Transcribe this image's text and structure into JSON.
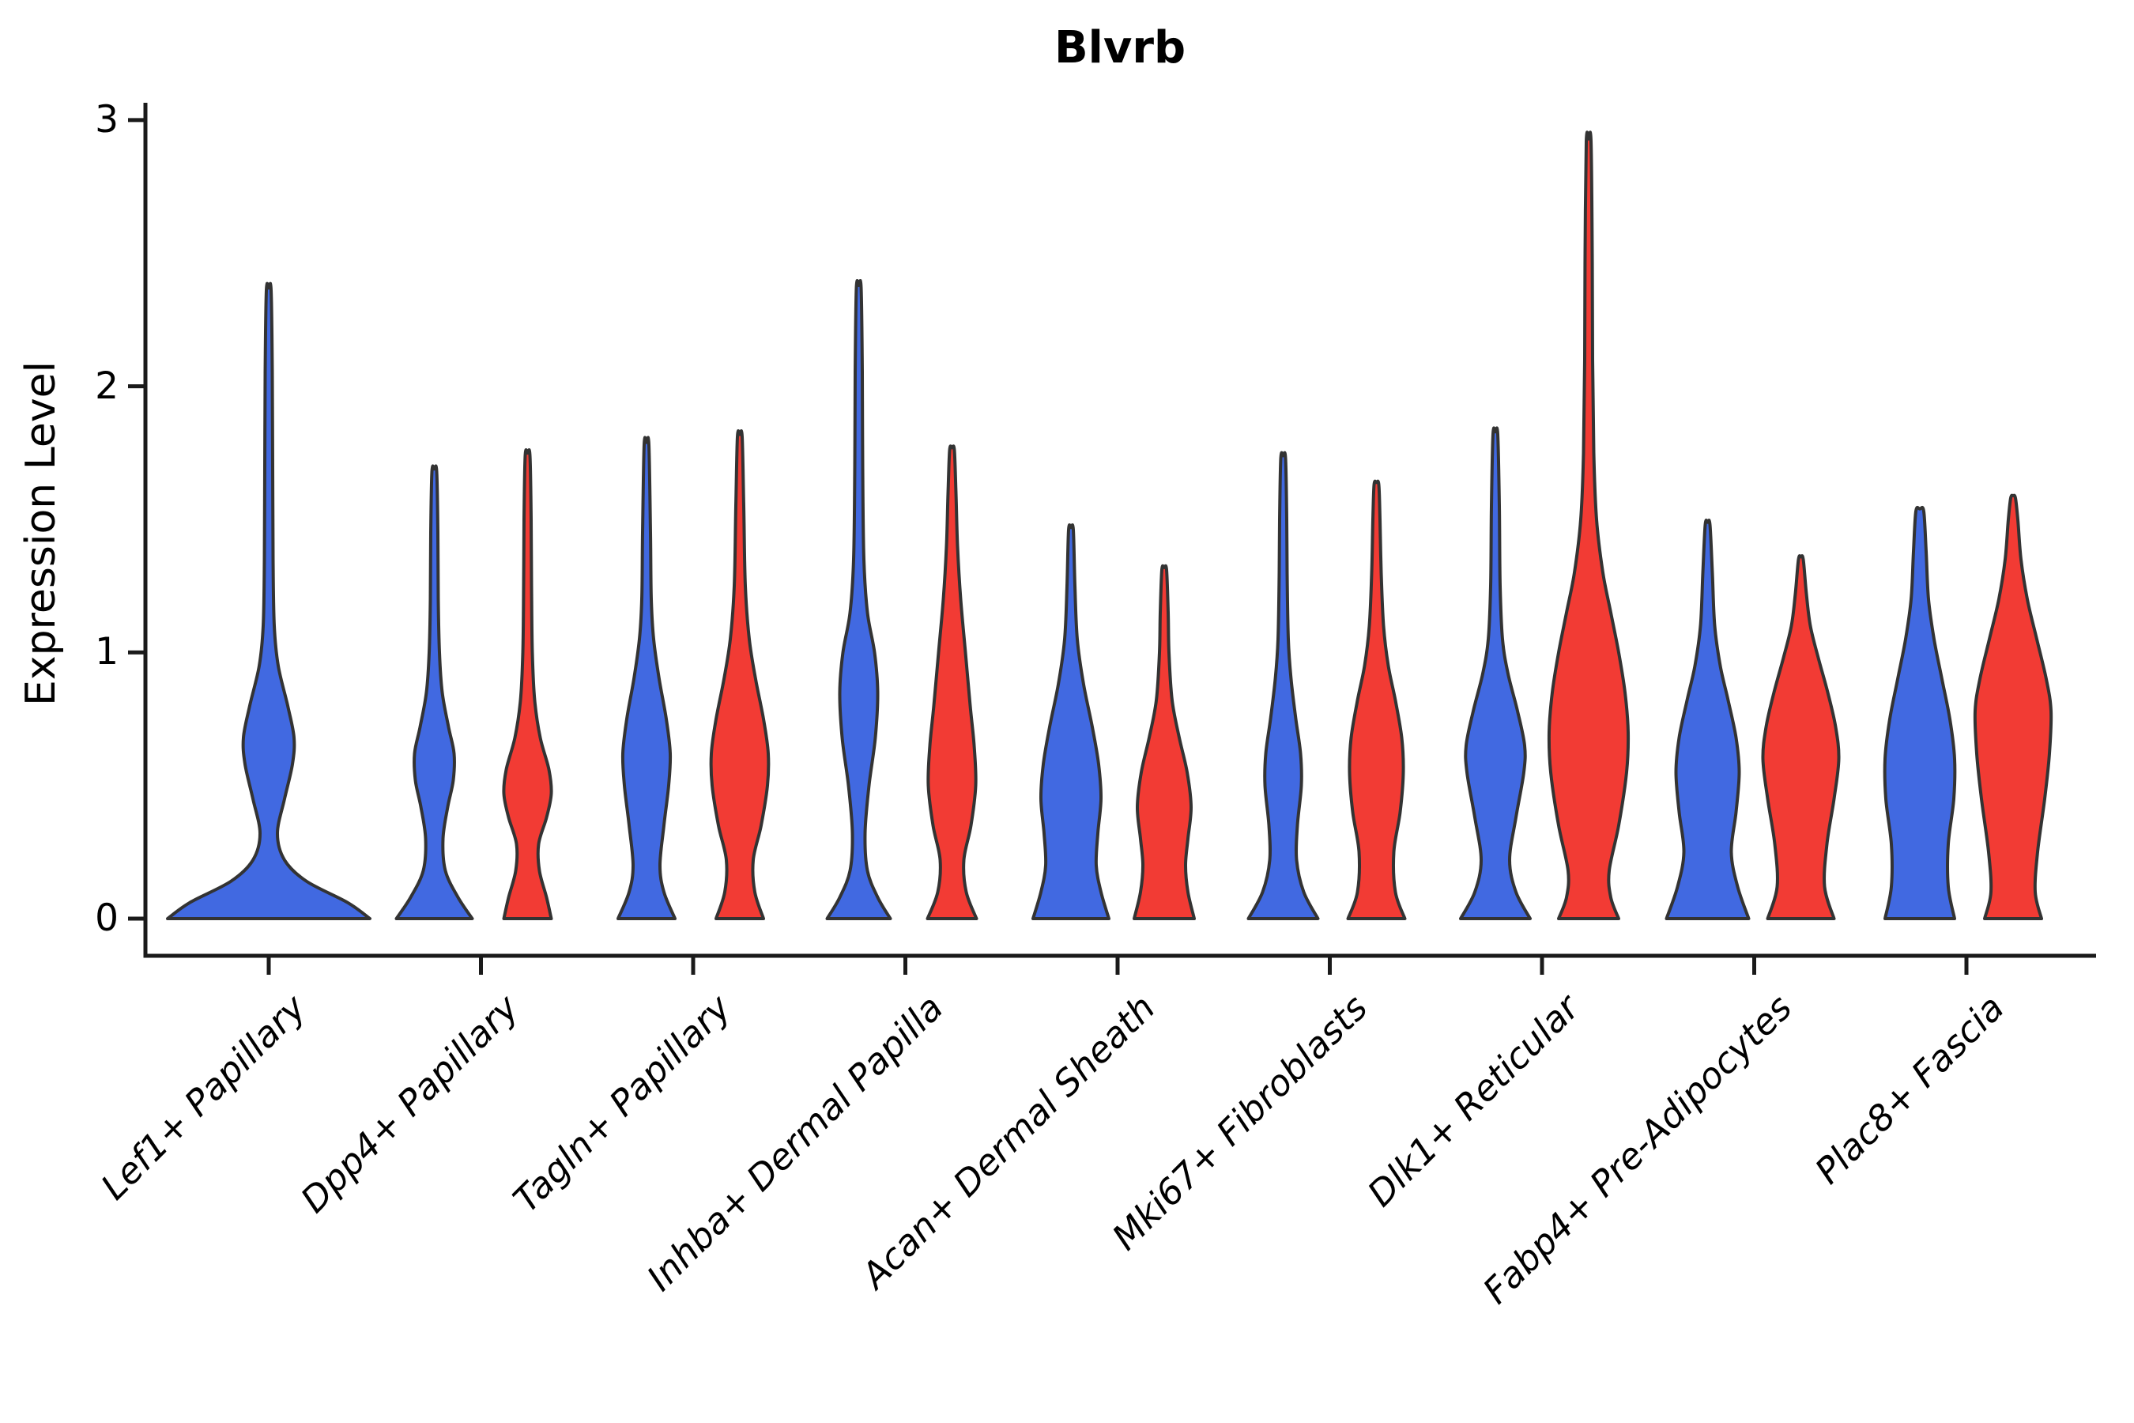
{
  "chart_data": {
    "type": "violin",
    "title": "Blvrb",
    "ylabel": "Expression Level",
    "xlabel": "",
    "yticks": [
      "0",
      "1",
      "2",
      "3"
    ],
    "ylim": [
      0,
      3.05
    ],
    "grid": false,
    "legend": "none",
    "categories": [
      "Lef1+ Papillary",
      "Dpp4+ Papillary",
      "Tagln+ Papillary",
      "Inhba+ Dermal Papilla",
      "Acan+ Dermal Sheath",
      "Mki67+ Fibroblasts",
      "Dlk1+ Reticular",
      "Fabp4+ Pre-Adipocytes",
      "Plac8+ Fascia"
    ],
    "colors": {
      "blue": "#4169E1",
      "red": "#F23B34",
      "edge": "#333333"
    },
    "note": "Split violin plot; expression density per cell type. profile = [expression_value, density_halfwidth_px] pairs from 0 up to the max observed value.",
    "violins": [
      {
        "category_index": 0,
        "color": "blue",
        "position": "single",
        "max": 2.36,
        "profile": [
          [
            0,
            128
          ],
          [
            0.06,
            100
          ],
          [
            0.14,
            48
          ],
          [
            0.22,
            20
          ],
          [
            0.32,
            11
          ],
          [
            0.45,
            20
          ],
          [
            0.58,
            30
          ],
          [
            0.68,
            32
          ],
          [
            0.8,
            24
          ],
          [
            0.95,
            12
          ],
          [
            1.1,
            7
          ],
          [
            1.35,
            5.5
          ],
          [
            1.7,
            5
          ],
          [
            2.05,
            4.5
          ],
          [
            2.36,
            3
          ]
        ]
      },
      {
        "category_index": 1,
        "color": "blue",
        "position": "left",
        "max": 1.68,
        "profile": [
          [
            0,
            48
          ],
          [
            0.08,
            30
          ],
          [
            0.18,
            14
          ],
          [
            0.3,
            11
          ],
          [
            0.42,
            17
          ],
          [
            0.52,
            24
          ],
          [
            0.62,
            25
          ],
          [
            0.72,
            18
          ],
          [
            0.85,
            10
          ],
          [
            1.0,
            6.5
          ],
          [
            1.2,
            5
          ],
          [
            1.45,
            4.5
          ],
          [
            1.68,
            3
          ]
        ]
      },
      {
        "category_index": 1,
        "color": "red",
        "position": "right",
        "max": 1.74,
        "profile": [
          [
            0,
            30
          ],
          [
            0.08,
            24
          ],
          [
            0.18,
            15
          ],
          [
            0.28,
            14
          ],
          [
            0.38,
            24
          ],
          [
            0.47,
            30
          ],
          [
            0.56,
            27
          ],
          [
            0.68,
            16
          ],
          [
            0.82,
            9
          ],
          [
            1.0,
            6
          ],
          [
            1.25,
            5
          ],
          [
            1.5,
            4.5
          ],
          [
            1.74,
            3
          ]
        ]
      },
      {
        "category_index": 2,
        "color": "blue",
        "position": "left",
        "max": 1.78,
        "profile": [
          [
            0,
            36
          ],
          [
            0.1,
            22
          ],
          [
            0.2,
            17
          ],
          [
            0.35,
            22
          ],
          [
            0.5,
            28
          ],
          [
            0.62,
            30
          ],
          [
            0.75,
            25
          ],
          [
            0.9,
            16
          ],
          [
            1.05,
            9
          ],
          [
            1.2,
            6
          ],
          [
            1.45,
            5
          ],
          [
            1.78,
            3
          ]
        ]
      },
      {
        "category_index": 2,
        "color": "red",
        "position": "right",
        "max": 1.81,
        "profile": [
          [
            0,
            30
          ],
          [
            0.1,
            19
          ],
          [
            0.22,
            17
          ],
          [
            0.35,
            27
          ],
          [
            0.5,
            35
          ],
          [
            0.62,
            36
          ],
          [
            0.75,
            30
          ],
          [
            0.9,
            20
          ],
          [
            1.05,
            12
          ],
          [
            1.25,
            7
          ],
          [
            1.55,
            5
          ],
          [
            1.81,
            3
          ]
        ]
      },
      {
        "category_index": 3,
        "color": "blue",
        "position": "left",
        "max": 2.37,
        "profile": [
          [
            0,
            40
          ],
          [
            0.08,
            24
          ],
          [
            0.18,
            11
          ],
          [
            0.32,
            8
          ],
          [
            0.5,
            13
          ],
          [
            0.68,
            21
          ],
          [
            0.85,
            24
          ],
          [
            1.0,
            20
          ],
          [
            1.15,
            11
          ],
          [
            1.35,
            6.5
          ],
          [
            1.7,
            5
          ],
          [
            2.05,
            4.5
          ],
          [
            2.37,
            3
          ]
        ]
      },
      {
        "category_index": 3,
        "color": "red",
        "position": "right",
        "max": 1.76,
        "profile": [
          [
            0,
            31
          ],
          [
            0.1,
            18
          ],
          [
            0.22,
            15
          ],
          [
            0.35,
            24
          ],
          [
            0.5,
            30
          ],
          [
            0.65,
            28
          ],
          [
            0.8,
            23
          ],
          [
            1.0,
            17
          ],
          [
            1.2,
            11
          ],
          [
            1.4,
            7
          ],
          [
            1.6,
            5
          ],
          [
            1.76,
            3
          ]
        ]
      },
      {
        "category_index": 4,
        "color": "blue",
        "position": "left",
        "max": 1.46,
        "profile": [
          [
            0,
            48
          ],
          [
            0.1,
            38
          ],
          [
            0.2,
            32
          ],
          [
            0.32,
            34
          ],
          [
            0.45,
            38
          ],
          [
            0.58,
            35
          ],
          [
            0.72,
            27
          ],
          [
            0.88,
            16
          ],
          [
            1.05,
            8
          ],
          [
            1.25,
            5
          ],
          [
            1.46,
            3
          ]
        ]
      },
      {
        "category_index": 4,
        "color": "red",
        "position": "right",
        "max": 1.31,
        "profile": [
          [
            0,
            38
          ],
          [
            0.1,
            30
          ],
          [
            0.2,
            27
          ],
          [
            0.3,
            30
          ],
          [
            0.42,
            34
          ],
          [
            0.55,
            29
          ],
          [
            0.68,
            19
          ],
          [
            0.82,
            10
          ],
          [
            1.0,
            6
          ],
          [
            1.15,
            5
          ],
          [
            1.31,
            3
          ]
        ]
      },
      {
        "category_index": 5,
        "color": "blue",
        "position": "left",
        "max": 1.73,
        "profile": [
          [
            0,
            44
          ],
          [
            0.1,
            26
          ],
          [
            0.22,
            17
          ],
          [
            0.35,
            18
          ],
          [
            0.5,
            23
          ],
          [
            0.62,
            22
          ],
          [
            0.75,
            16
          ],
          [
            0.9,
            10
          ],
          [
            1.05,
            6.5
          ],
          [
            1.3,
            5
          ],
          [
            1.5,
            4.5
          ],
          [
            1.73,
            3
          ]
        ]
      },
      {
        "category_index": 5,
        "color": "red",
        "position": "right",
        "max": 1.63,
        "profile": [
          [
            0,
            36
          ],
          [
            0.1,
            24
          ],
          [
            0.25,
            22
          ],
          [
            0.4,
            30
          ],
          [
            0.55,
            34
          ],
          [
            0.68,
            32
          ],
          [
            0.82,
            24
          ],
          [
            0.95,
            15
          ],
          [
            1.1,
            9
          ],
          [
            1.3,
            6
          ],
          [
            1.5,
            4.5
          ],
          [
            1.63,
            3
          ]
        ]
      },
      {
        "category_index": 6,
        "color": "blue",
        "position": "left",
        "max": 1.82,
        "profile": [
          [
            0,
            44
          ],
          [
            0.1,
            26
          ],
          [
            0.22,
            18
          ],
          [
            0.38,
            26
          ],
          [
            0.55,
            36
          ],
          [
            0.65,
            37
          ],
          [
            0.78,
            28
          ],
          [
            0.92,
            16
          ],
          [
            1.05,
            9
          ],
          [
            1.25,
            6
          ],
          [
            1.55,
            5
          ],
          [
            1.82,
            3
          ]
        ]
      },
      {
        "category_index": 6,
        "color": "red",
        "position": "right",
        "max": 2.92,
        "profile": [
          [
            0,
            38
          ],
          [
            0.08,
            28
          ],
          [
            0.18,
            26
          ],
          [
            0.35,
            38
          ],
          [
            0.55,
            48
          ],
          [
            0.7,
            50
          ],
          [
            0.85,
            46
          ],
          [
            1.0,
            38
          ],
          [
            1.15,
            28
          ],
          [
            1.3,
            18
          ],
          [
            1.5,
            10
          ],
          [
            1.75,
            6.5
          ],
          [
            2.1,
            5
          ],
          [
            2.5,
            4.5
          ],
          [
            2.92,
            3
          ]
        ]
      },
      {
        "category_index": 7,
        "color": "blue",
        "position": "left",
        "max": 1.48,
        "profile": [
          [
            0,
            52
          ],
          [
            0.12,
            38
          ],
          [
            0.25,
            30
          ],
          [
            0.4,
            36
          ],
          [
            0.55,
            40
          ],
          [
            0.68,
            36
          ],
          [
            0.82,
            26
          ],
          [
            0.95,
            16
          ],
          [
            1.1,
            9
          ],
          [
            1.3,
            6
          ],
          [
            1.48,
            3
          ]
        ]
      },
      {
        "category_index": 7,
        "color": "red",
        "position": "right",
        "max": 1.35,
        "profile": [
          [
            0,
            42
          ],
          [
            0.12,
            30
          ],
          [
            0.28,
            33
          ],
          [
            0.45,
            42
          ],
          [
            0.6,
            48
          ],
          [
            0.72,
            44
          ],
          [
            0.85,
            34
          ],
          [
            0.98,
            22
          ],
          [
            1.1,
            12
          ],
          [
            1.22,
            7
          ],
          [
            1.35,
            3
          ]
        ]
      },
      {
        "category_index": 8,
        "color": "blue",
        "position": "left",
        "max": 1.53,
        "profile": [
          [
            0,
            44
          ],
          [
            0.12,
            36
          ],
          [
            0.28,
            36
          ],
          [
            0.45,
            43
          ],
          [
            0.6,
            44
          ],
          [
            0.75,
            38
          ],
          [
            0.9,
            28
          ],
          [
            1.05,
            18
          ],
          [
            1.2,
            11
          ],
          [
            1.38,
            8
          ],
          [
            1.53,
            5
          ]
        ]
      },
      {
        "category_index": 8,
        "color": "red",
        "position": "right",
        "max": 1.58,
        "profile": [
          [
            0,
            36
          ],
          [
            0.1,
            28
          ],
          [
            0.25,
            31
          ],
          [
            0.45,
            40
          ],
          [
            0.62,
            46
          ],
          [
            0.78,
            48
          ],
          [
            0.9,
            42
          ],
          [
            1.05,
            30
          ],
          [
            1.2,
            18
          ],
          [
            1.35,
            10
          ],
          [
            1.5,
            6
          ],
          [
            1.58,
            3
          ]
        ]
      }
    ]
  }
}
